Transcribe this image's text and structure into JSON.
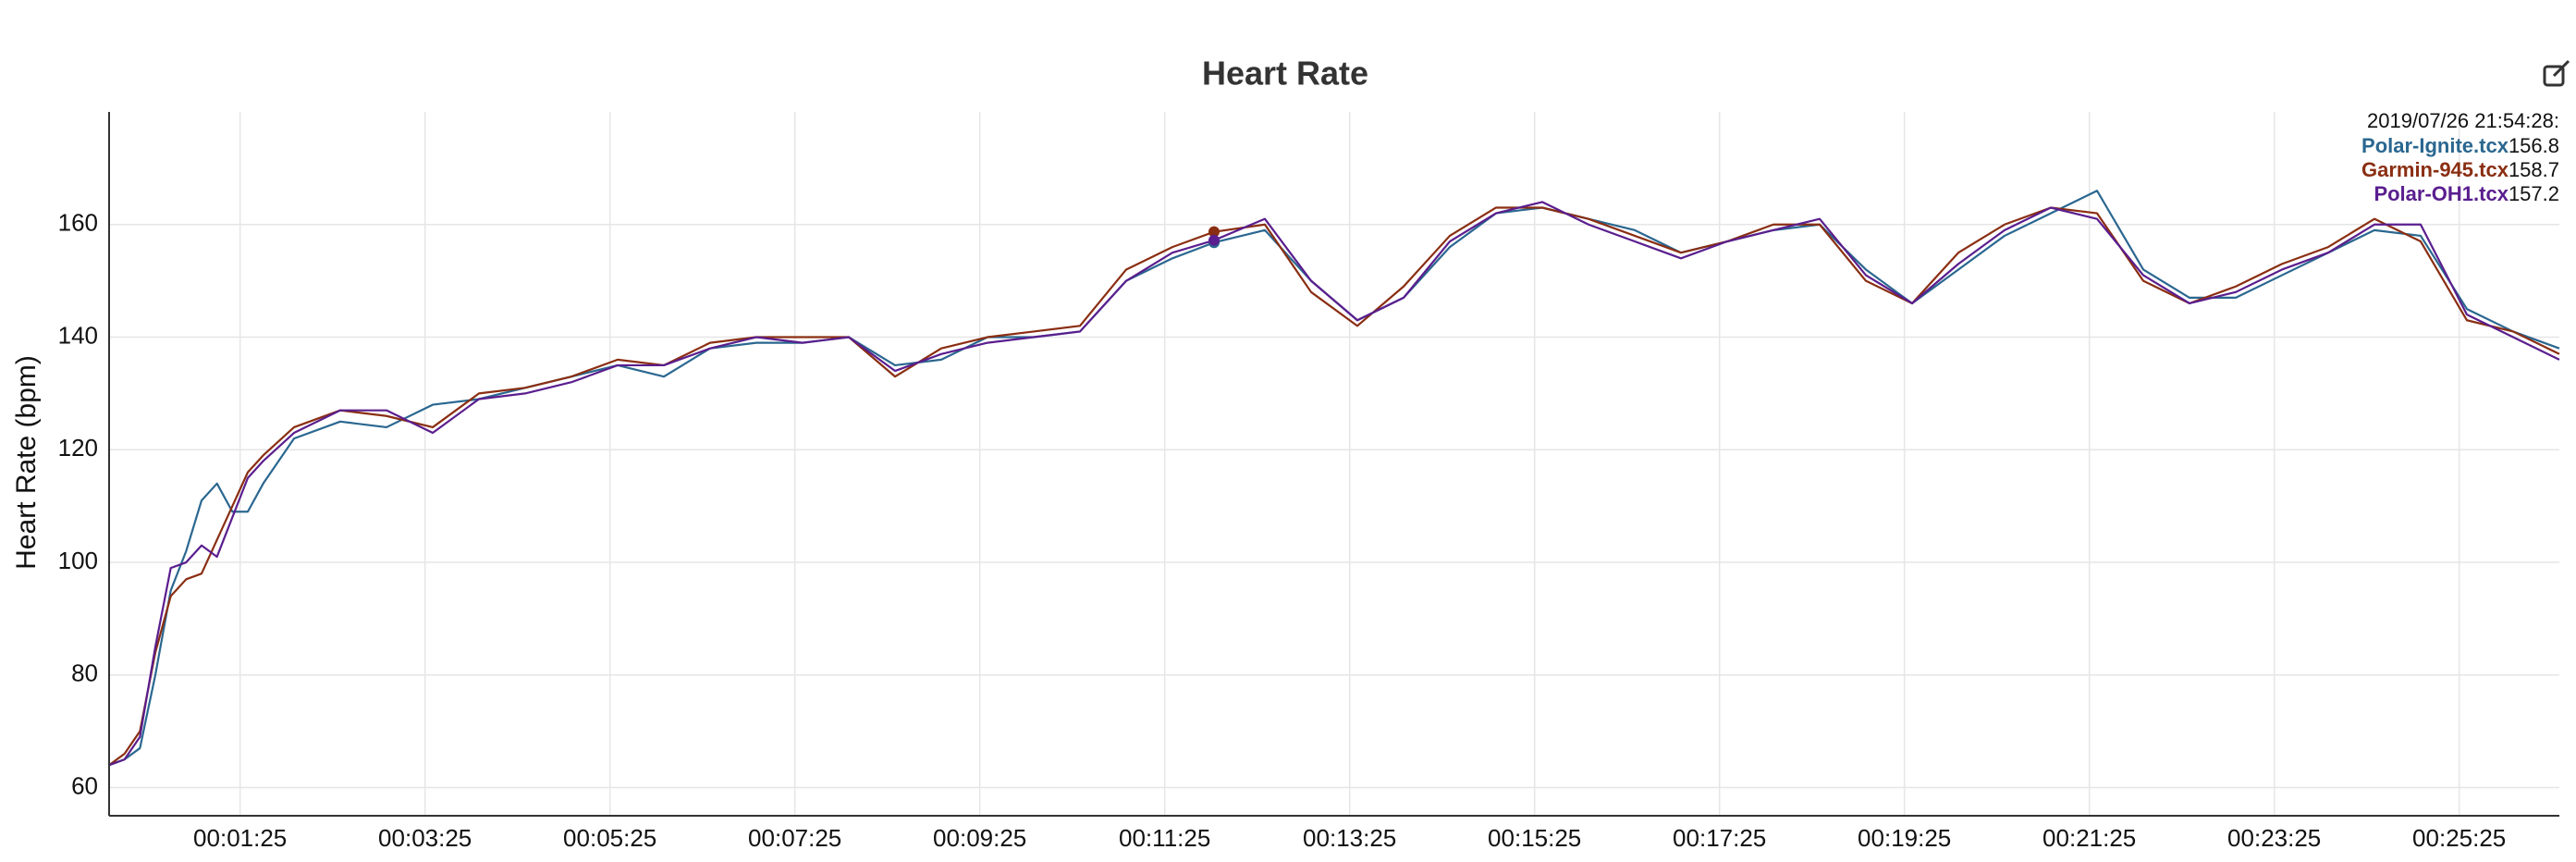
{
  "chart_data": {
    "type": "line",
    "title": "Heart Rate",
    "y_label": "Heart Rate (bpm)",
    "x": [
      0,
      10,
      20,
      30,
      40,
      50,
      60,
      70,
      80,
      90,
      100,
      120,
      150,
      180,
      210,
      240,
      270,
      300,
      330,
      360,
      390,
      420,
      450,
      480,
      510,
      540,
      570,
      600,
      630,
      660,
      690,
      717,
      750,
      780,
      810,
      840,
      870,
      900,
      930,
      960,
      990,
      1020,
      1050,
      1080,
      1110,
      1140,
      1170,
      1200,
      1230,
      1260,
      1290,
      1320,
      1350,
      1380,
      1410,
      1440,
      1470,
      1500,
      1530,
      1560,
      1590
    ],
    "series": [
      {
        "name": "Polar-Ignite.tcx",
        "color": "#2a6790",
        "values": [
          64,
          65,
          67,
          80,
          95,
          102,
          111,
          114,
          109,
          109,
          114,
          122,
          125,
          124,
          128,
          129,
          131,
          133,
          135,
          133,
          138,
          139,
          139,
          140,
          135,
          136,
          140,
          140,
          141,
          150,
          154,
          156.8,
          159,
          150,
          143,
          147,
          156,
          162,
          163,
          161,
          159,
          155,
          157,
          159,
          160,
          152,
          146,
          152,
          158,
          162,
          166,
          152,
          147,
          147,
          151,
          155,
          159,
          158,
          145,
          141,
          138
        ]
      },
      {
        "name": "Garmin-945.tcx",
        "color": "#8a2e12",
        "values": [
          64,
          66,
          70,
          84,
          94,
          97,
          98,
          104,
          110,
          116,
          119,
          124,
          127,
          126,
          124,
          130,
          131,
          133,
          136,
          135,
          139,
          140,
          140,
          140,
          133,
          138,
          140,
          141,
          142,
          152,
          156,
          158.7,
          160,
          148,
          142,
          149,
          158,
          163,
          163,
          161,
          158,
          155,
          157,
          160,
          160,
          150,
          146,
          155,
          160,
          163,
          162,
          150,
          146,
          149,
          153,
          156,
          161,
          157,
          143,
          141,
          137
        ]
      },
      {
        "name": "Polar-OH1.tcx",
        "color": "#5a1e8e",
        "values": [
          64,
          65,
          69,
          85,
          99,
          100,
          103,
          101,
          108,
          115,
          118,
          123,
          127,
          127,
          123,
          129,
          130,
          132,
          135,
          135,
          138,
          140,
          139,
          140,
          134,
          137,
          139,
          140,
          141,
          150,
          155,
          157.2,
          161,
          150,
          143,
          147,
          157,
          162,
          164,
          160,
          157,
          154,
          157,
          159,
          161,
          151,
          146,
          153,
          159,
          163,
          161,
          151,
          146,
          148,
          152,
          155,
          160,
          160,
          144,
          140,
          136
        ]
      }
    ],
    "xlim": [
      0,
      1590
    ],
    "ylim": [
      55,
      180
    ],
    "xticks": [
      {
        "value": 85,
        "label": "00:01:25"
      },
      {
        "value": 205,
        "label": "00:03:25"
      },
      {
        "value": 325,
        "label": "00:05:25"
      },
      {
        "value": 445,
        "label": "00:07:25"
      },
      {
        "value": 565,
        "label": "00:09:25"
      },
      {
        "value": 685,
        "label": "00:11:25"
      },
      {
        "value": 805,
        "label": "00:13:25"
      },
      {
        "value": 925,
        "label": "00:15:25"
      },
      {
        "value": 1045,
        "label": "00:17:25"
      },
      {
        "value": 1165,
        "label": "00:19:25"
      },
      {
        "value": 1285,
        "label": "00:21:25"
      },
      {
        "value": 1405,
        "label": "00:23:25"
      },
      {
        "value": 1525,
        "label": "00:25:25"
      }
    ],
    "yticks": [
      60,
      80,
      100,
      120,
      140,
      160
    ],
    "grid": true,
    "hover": {
      "x": 717,
      "time": "2019/07/26 21:54:28:"
    }
  }
}
